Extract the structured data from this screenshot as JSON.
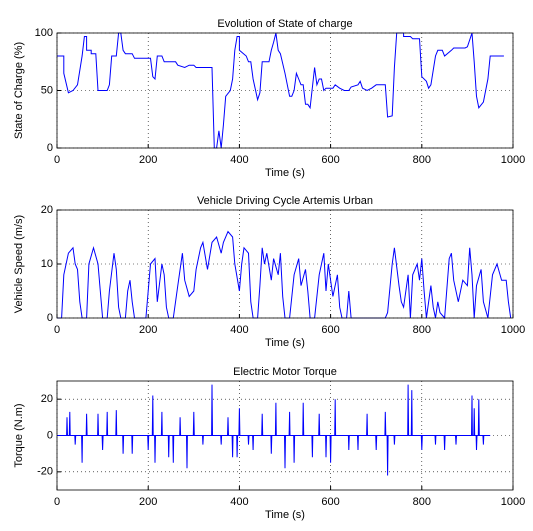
{
  "chart_data": [
    {
      "type": "line",
      "title": "Evolution of State of charge",
      "xlabel": "Time (s)",
      "ylabel": "State of Charge (%)",
      "color": "#0000ff",
      "grid": true,
      "xlim": [
        0,
        1000
      ],
      "xticks": [
        0,
        200,
        400,
        600,
        800,
        1000
      ],
      "ylim": [
        0,
        100
      ],
      "yticks": [
        0,
        50,
        100
      ],
      "x": [
        0,
        15,
        15,
        25,
        35,
        45,
        55,
        60,
        65,
        65,
        75,
        75,
        85,
        90,
        110,
        115,
        120,
        130,
        135,
        140,
        145,
        150,
        165,
        170,
        205,
        210,
        215,
        220,
        230,
        235,
        260,
        265,
        280,
        290,
        300,
        305,
        340,
        345,
        350,
        355,
        360,
        365,
        370,
        380,
        385,
        390,
        395,
        400,
        400,
        415,
        420,
        425,
        430,
        440,
        445,
        450,
        465,
        470,
        475,
        480,
        485,
        490,
        500,
        510,
        515,
        520,
        525,
        530,
        535,
        540,
        545,
        550,
        555,
        565,
        570,
        575,
        580,
        585,
        590,
        605,
        610,
        620,
        630,
        640,
        645,
        660,
        665,
        670,
        680,
        690,
        700,
        720,
        725,
        735,
        740,
        745,
        760,
        760,
        775,
        780,
        795,
        800,
        810,
        815,
        820,
        830,
        835,
        845,
        850,
        865,
        870,
        895,
        900,
        910,
        915,
        920,
        925,
        935,
        945,
        950,
        970,
        980
      ],
      "values": [
        80,
        80,
        65,
        48,
        50,
        55,
        80,
        97,
        97,
        85,
        85,
        82,
        82,
        50,
        50,
        55,
        80,
        80,
        100,
        100,
        85,
        82,
        82,
        78,
        78,
        62,
        60,
        80,
        80,
        75,
        75,
        72,
        70,
        72,
        72,
        70,
        70,
        0,
        0,
        15,
        0,
        20,
        45,
        50,
        60,
        85,
        97,
        97,
        85,
        80,
        75,
        75,
        60,
        42,
        48,
        75,
        75,
        85,
        92,
        100,
        85,
        82,
        65,
        45,
        45,
        50,
        65,
        60,
        55,
        55,
        38,
        38,
        35,
        70,
        55,
        60,
        60,
        50,
        52,
        52,
        55,
        52,
        50,
        50,
        53,
        55,
        58,
        52,
        50,
        52,
        55,
        55,
        27,
        28,
        70,
        100,
        100,
        97,
        97,
        95,
        95,
        62,
        58,
        52,
        55,
        80,
        85,
        85,
        80,
        85,
        87,
        87,
        88,
        100,
        75,
        45,
        35,
        40,
        60,
        80,
        80,
        80
      ]
    },
    {
      "type": "line",
      "title": "Vehicle Driving Cycle Artemis Urban",
      "xlabel": "Time (s)",
      "ylabel": "Vehicle Speed (m/s)",
      "color": "#0000ff",
      "grid": true,
      "xlim": [
        0,
        1000
      ],
      "xticks": [
        0,
        200,
        400,
        600,
        800,
        1000
      ],
      "ylim": [
        0,
        20
      ],
      "yticks": [
        0,
        10,
        20
      ],
      "x": [
        0,
        10,
        15,
        25,
        35,
        40,
        45,
        50,
        55,
        65,
        70,
        80,
        90,
        95,
        100,
        110,
        115,
        125,
        130,
        135,
        140,
        150,
        155,
        160,
        165,
        170,
        195,
        205,
        215,
        220,
        230,
        235,
        240,
        245,
        255,
        265,
        275,
        280,
        290,
        300,
        305,
        315,
        320,
        330,
        340,
        350,
        360,
        365,
        375,
        385,
        390,
        400,
        405,
        410,
        420,
        425,
        430,
        440,
        445,
        450,
        455,
        460,
        470,
        475,
        485,
        490,
        495,
        500,
        510,
        520,
        530,
        535,
        545,
        550,
        555,
        565,
        575,
        585,
        590,
        595,
        605,
        615,
        620,
        625,
        635,
        640,
        645,
        720,
        725,
        735,
        740,
        750,
        755,
        760,
        770,
        775,
        780,
        790,
        795,
        800,
        805,
        810,
        820,
        825,
        830,
        835,
        840,
        850,
        860,
        865,
        870,
        880,
        890,
        900,
        905,
        910,
        915,
        920,
        930,
        935,
        945,
        955,
        965,
        975,
        985,
        990,
        995
      ],
      "values": [
        0,
        0,
        8,
        12,
        13,
        10,
        9,
        3,
        0,
        0,
        10,
        13,
        10,
        5,
        0,
        0,
        5,
        12,
        9,
        2,
        0,
        0,
        5,
        7,
        3,
        0,
        0,
        10,
        11,
        3,
        10,
        8,
        2,
        0,
        0,
        6,
        12,
        7,
        4,
        5,
        9,
        13,
        14,
        9,
        14,
        15,
        12,
        14,
        16,
        15,
        10,
        5,
        10,
        13,
        12,
        3,
        0,
        0,
        6,
        13,
        10,
        12,
        7,
        11,
        8,
        12,
        4,
        0,
        0,
        8,
        11,
        6,
        9,
        5,
        0,
        0,
        8,
        12,
        5,
        10,
        4,
        8,
        2,
        0,
        0,
        5,
        0,
        0,
        1,
        10,
        13,
        6,
        3,
        2,
        8,
        0,
        8,
        10,
        7,
        11,
        5,
        0,
        6,
        2,
        0,
        3,
        1,
        0,
        11,
        12,
        7,
        3,
        7,
        6,
        13,
        8,
        0,
        6,
        9,
        3,
        0,
        8,
        10,
        7,
        7,
        3,
        0
      ]
    },
    {
      "type": "line",
      "title": "Electric Motor Torque",
      "xlabel": "Time (s)",
      "ylabel": "Torque (N.m)",
      "color": "#0000ff",
      "grid": true,
      "xlim": [
        0,
        1000
      ],
      "xticks": [
        0,
        200,
        400,
        600,
        800,
        1000
      ],
      "ylim": [
        -30,
        30
      ],
      "yticks": [
        -20,
        0,
        20
      ],
      "x": [
        0,
        21,
        22,
        23,
        27,
        28,
        29,
        39,
        40,
        41,
        54,
        55,
        56,
        64,
        65,
        66,
        89,
        90,
        91,
        99,
        100,
        101,
        109,
        110,
        111,
        129,
        130,
        131,
        144,
        145,
        146,
        164,
        165,
        166,
        199,
        200,
        201,
        209,
        210,
        211,
        214,
        215,
        216,
        229,
        230,
        231,
        244,
        245,
        246,
        254,
        255,
        256,
        269,
        270,
        271,
        284,
        285,
        286,
        299,
        300,
        301,
        319,
        320,
        321,
        339,
        340,
        341,
        359,
        360,
        361,
        374,
        375,
        376,
        384,
        385,
        386,
        394,
        395,
        396,
        399,
        400,
        401,
        419,
        420,
        421,
        429,
        430,
        431,
        449,
        450,
        451,
        469,
        470,
        471,
        479,
        480,
        481,
        499,
        500,
        501,
        509,
        510,
        511,
        519,
        520,
        521,
        539,
        540,
        541,
        559,
        560,
        561,
        574,
        575,
        576,
        589,
        590,
        591,
        599,
        600,
        601,
        609,
        610,
        611,
        639,
        640,
        641,
        659,
        660,
        661,
        679,
        680,
        681,
        699,
        700,
        701,
        719,
        720,
        721,
        724,
        725,
        726,
        739,
        740,
        741,
        769,
        770,
        771,
        777,
        778,
        779,
        799,
        800,
        801,
        829,
        830,
        831,
        849,
        850,
        851,
        874,
        875,
        876,
        909,
        910,
        911,
        914,
        915,
        916,
        919,
        920,
        921,
        924,
        925,
        926,
        934,
        935,
        936,
        950
      ],
      "values": [
        0,
        0,
        10,
        0,
        0,
        13,
        0,
        0,
        -5,
        0,
        0,
        -15,
        0,
        0,
        12,
        0,
        0,
        12,
        0,
        0,
        -8,
        0,
        0,
        13,
        0,
        0,
        14,
        0,
        0,
        -10,
        0,
        0,
        -10,
        0,
        0,
        -8,
        0,
        0,
        22,
        0,
        0,
        -15,
        0,
        0,
        13,
        0,
        0,
        -12,
        0,
        0,
        -15,
        0,
        0,
        10,
        0,
        0,
        -18,
        0,
        0,
        13,
        0,
        0,
        -5,
        0,
        0,
        28,
        0,
        0,
        -5,
        0,
        0,
        10,
        0,
        0,
        -12,
        0,
        0,
        -12,
        0,
        0,
        15,
        0,
        0,
        -5,
        0,
        0,
        -8,
        0,
        0,
        12,
        0,
        0,
        -10,
        0,
        0,
        18,
        0,
        0,
        -18,
        0,
        0,
        13,
        0,
        0,
        -15,
        0,
        0,
        18,
        0,
        0,
        -12,
        0,
        0,
        12,
        0,
        0,
        -12,
        0,
        0,
        -15,
        0,
        0,
        20,
        0,
        0,
        -8,
        0,
        0,
        -8,
        0,
        0,
        12,
        0,
        0,
        -8,
        0,
        0,
        13,
        0,
        0,
        -22,
        0,
        0,
        -5,
        0,
        0,
        28,
        0,
        0,
        25,
        0,
        0,
        -8,
        0,
        0,
        -5,
        0,
        0,
        -8,
        0,
        0,
        -5,
        0,
        0,
        22,
        0,
        0,
        15,
        0,
        0,
        -8,
        0,
        0,
        20,
        0,
        0,
        -5,
        0,
        0
      ]
    }
  ]
}
